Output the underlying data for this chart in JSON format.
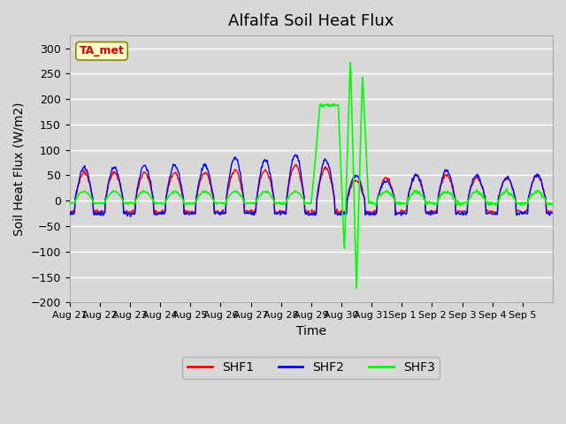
{
  "title": "Alfalfa Soil Heat Flux",
  "xlabel": "Time",
  "ylabel": "Soil Heat Flux (W/m2)",
  "ylim": [
    -200,
    325
  ],
  "yticks": [
    -200,
    -150,
    -100,
    -50,
    0,
    50,
    100,
    150,
    200,
    250,
    300
  ],
  "background_color": "#d8d8d8",
  "grid_color": "#ffffff",
  "shf1_color": "#ff0000",
  "shf2_color": "#0000ff",
  "shf3_color": "#00ff00",
  "legend_labels": [
    "SHF1",
    "SHF2",
    "SHF3"
  ],
  "annotation_text": "TA_met",
  "annotation_color": "#cc0000",
  "annotation_bg": "#ffffcc",
  "x_tick_labels": [
    "Aug 21",
    "Aug 22",
    "Aug 23",
    "Aug 24",
    "Aug 25",
    "Aug 26",
    "Aug 27",
    "Aug 28",
    "Aug 29",
    "Aug 30",
    "Aug 31",
    "Sep 1",
    "Sep 2",
    "Sep 3",
    "Sep 4",
    "Sep 5"
  ],
  "n_days": 16,
  "peak_heights_shf1": [
    55,
    55,
    55,
    55,
    55,
    60,
    60,
    70,
    65,
    40,
    45,
    50,
    50,
    45,
    45,
    50
  ],
  "peak_heights_shf2": [
    65,
    65,
    70,
    70,
    70,
    85,
    80,
    90,
    80,
    50,
    40,
    50,
    60,
    50,
    45,
    50
  ],
  "title_fontsize": 13,
  "axis_label_fontsize": 10
}
